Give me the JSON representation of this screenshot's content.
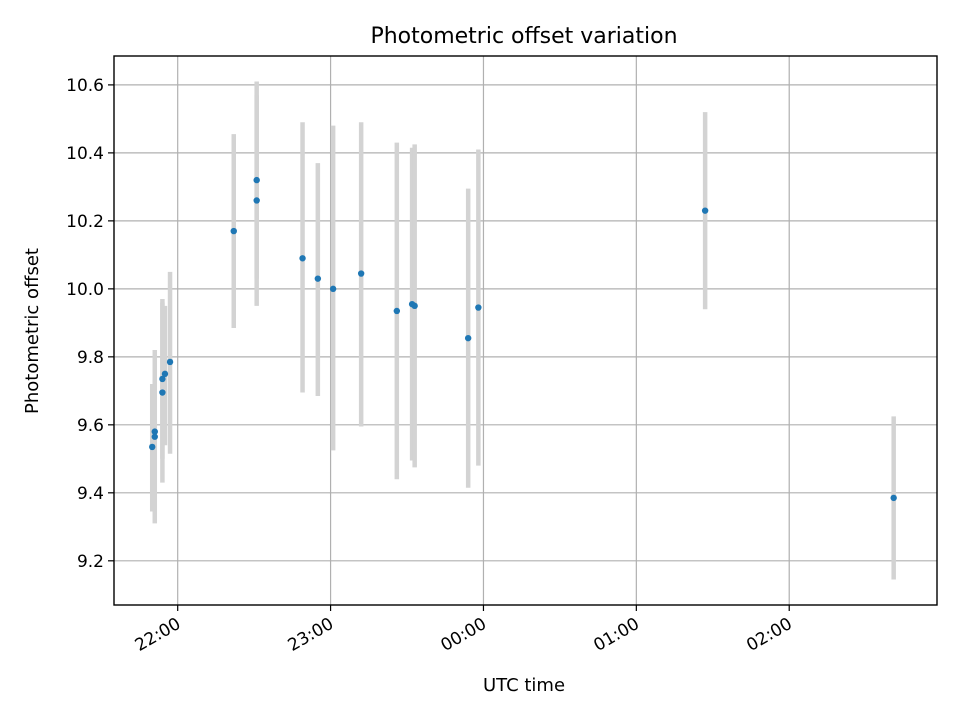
{
  "chart_data": {
    "type": "scatter",
    "title": "Photometric offset variation",
    "xlabel": "UTC time",
    "ylabel": "Photometric offset",
    "grid": true,
    "colors": {
      "point": "#1f77b4",
      "errorbar": "#d3d3d3"
    },
    "xlim": [
      "21:35",
      "02:58"
    ],
    "ylim": [
      9.07,
      10.685
    ],
    "x_ticks": [
      "22:00",
      "23:00",
      "00:00",
      "01:00",
      "02:00"
    ],
    "y_ticks": [
      9.2,
      9.4,
      9.6,
      9.8,
      10.0,
      10.2,
      10.4,
      10.6
    ],
    "y_tick_labels": [
      "9.2",
      "9.4",
      "9.6",
      "9.8",
      "10.0",
      "10.2",
      "10.4",
      "10.6"
    ],
    "points": [
      {
        "x": "21:50",
        "y": 9.535,
        "err_low": 9.345,
        "err_high": 9.72
      },
      {
        "x": "21:51",
        "y": 9.565,
        "err_low": 9.35,
        "err_high": 9.73
      },
      {
        "x": "21:51",
        "y": 9.58,
        "err_low": 9.31,
        "err_high": 9.82
      },
      {
        "x": "21:54",
        "y": 9.695,
        "err_low": 9.43,
        "err_high": 9.97
      },
      {
        "x": "21:54",
        "y": 9.735,
        "err_low": 9.5,
        "err_high": 9.96
      },
      {
        "x": "21:55",
        "y": 9.75,
        "err_low": 9.54,
        "err_high": 9.95
      },
      {
        "x": "21:57",
        "y": 9.785,
        "err_low": 9.515,
        "err_high": 10.05
      },
      {
        "x": "22:22",
        "y": 10.17,
        "err_low": 9.885,
        "err_high": 10.455
      },
      {
        "x": "22:31",
        "y": 10.32,
        "err_low": 10.03,
        "err_high": 10.61
      },
      {
        "x": "22:31",
        "y": 10.26,
        "err_low": 9.95,
        "err_high": 10.57
      },
      {
        "x": "22:49",
        "y": 10.09,
        "err_low": 9.695,
        "err_high": 10.49
      },
      {
        "x": "22:55",
        "y": 10.03,
        "err_low": 9.685,
        "err_high": 10.37
      },
      {
        "x": "23:01",
        "y": 10.0,
        "err_low": 9.525,
        "err_high": 10.48
      },
      {
        "x": "23:12",
        "y": 10.045,
        "err_low": 9.595,
        "err_high": 10.49
      },
      {
        "x": "23:26",
        "y": 9.935,
        "err_low": 9.44,
        "err_high": 10.43
      },
      {
        "x": "23:32",
        "y": 9.955,
        "err_low": 9.495,
        "err_high": 10.415
      },
      {
        "x": "23:33",
        "y": 9.95,
        "err_low": 9.475,
        "err_high": 10.425
      },
      {
        "x": "23:54",
        "y": 9.855,
        "err_low": 9.415,
        "err_high": 10.295
      },
      {
        "x": "23:58",
        "y": 9.945,
        "err_low": 9.48,
        "err_high": 10.41
      },
      {
        "x": "01:27",
        "y": 10.23,
        "err_low": 9.94,
        "err_high": 10.52
      },
      {
        "x": "02:41",
        "y": 9.385,
        "err_low": 9.145,
        "err_high": 9.625
      }
    ]
  }
}
